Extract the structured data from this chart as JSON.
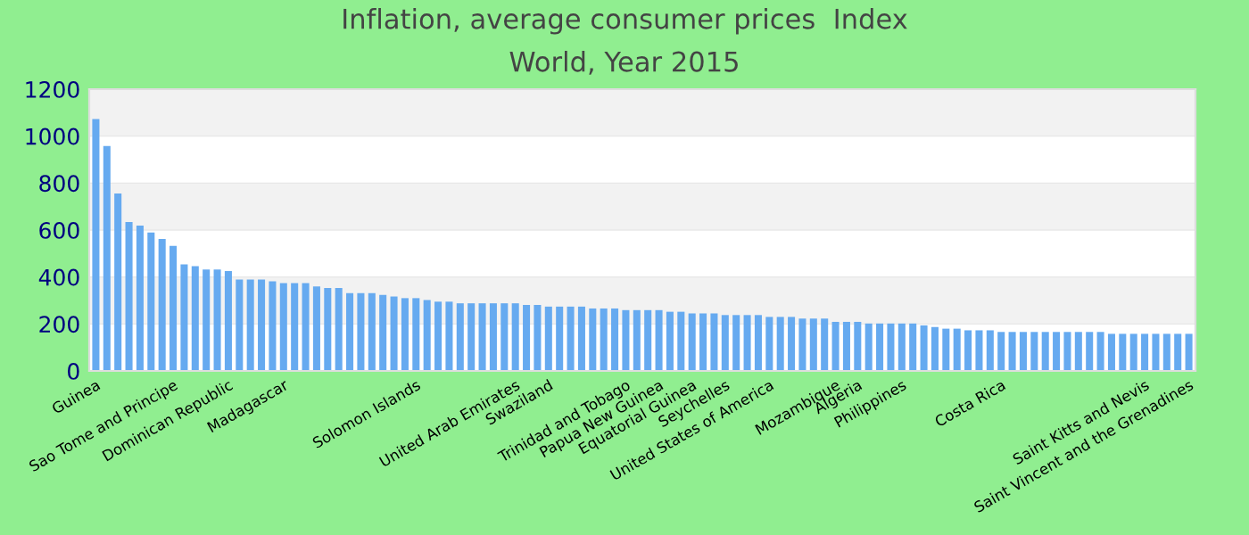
{
  "chart_data": {
    "type": "bar",
    "title": "Inflation, average consumer prices  Index",
    "subtitle": "World, Year 2015",
    "categories": [
      "Guinea",
      null,
      null,
      null,
      null,
      null,
      null,
      "Sao Tome and Principe",
      null,
      null,
      null,
      null,
      "Dominican Republic",
      null,
      null,
      null,
      null,
      "Madagascar",
      null,
      null,
      null,
      null,
      null,
      null,
      null,
      null,
      null,
      null,
      null,
      "Solomon Islands",
      null,
      null,
      null,
      null,
      null,
      null,
      null,
      null,
      "United Arab Emirates",
      null,
      null,
      "Swaziland",
      null,
      null,
      null,
      null,
      null,
      null,
      "Trinidad and Tobago",
      null,
      null,
      "Papua New Guinea",
      null,
      null,
      "Equatorial Guinea",
      null,
      null,
      "Seychelles",
      null,
      null,
      null,
      "United States of America",
      null,
      null,
      null,
      null,
      null,
      "Mozambique",
      null,
      "Algeria",
      null,
      null,
      null,
      "Philippines",
      null,
      null,
      null,
      null,
      null,
      null,
      null,
      null,
      "Costa Rica",
      null,
      null,
      null,
      null,
      null,
      null,
      null,
      null,
      null,
      null,
      null,
      null,
      "Saint Kitts and Nevis",
      null,
      null,
      null,
      "Saint Vincent and the Grenadines"
    ],
    "values": [
      1073,
      958,
      756,
      634,
      619,
      590,
      562,
      533,
      454,
      446,
      432,
      432,
      425,
      389,
      389,
      389,
      382,
      374,
      374,
      374,
      360,
      353,
      353,
      331,
      331,
      331,
      324,
      317,
      310,
      310,
      302,
      295,
      295,
      288,
      288,
      288,
      288,
      288,
      288,
      281,
      281,
      274,
      274,
      274,
      274,
      266,
      266,
      266,
      259,
      259,
      259,
      259,
      252,
      252,
      245,
      245,
      245,
      238,
      238,
      238,
      238,
      230,
      230,
      230,
      223,
      223,
      223,
      209,
      209,
      209,
      202,
      202,
      202,
      202,
      202,
      194,
      187,
      180,
      180,
      173,
      173,
      173,
      166,
      166,
      166,
      166,
      166,
      166,
      166,
      166,
      166,
      166,
      158,
      158,
      158,
      158,
      158,
      158,
      158,
      158
    ],
    "color": "#66aaf0",
    "ylim": [
      0,
      1200
    ],
    "yticks": [
      0,
      200,
      400,
      600,
      800,
      1000,
      1200
    ],
    "grid": "y"
  }
}
